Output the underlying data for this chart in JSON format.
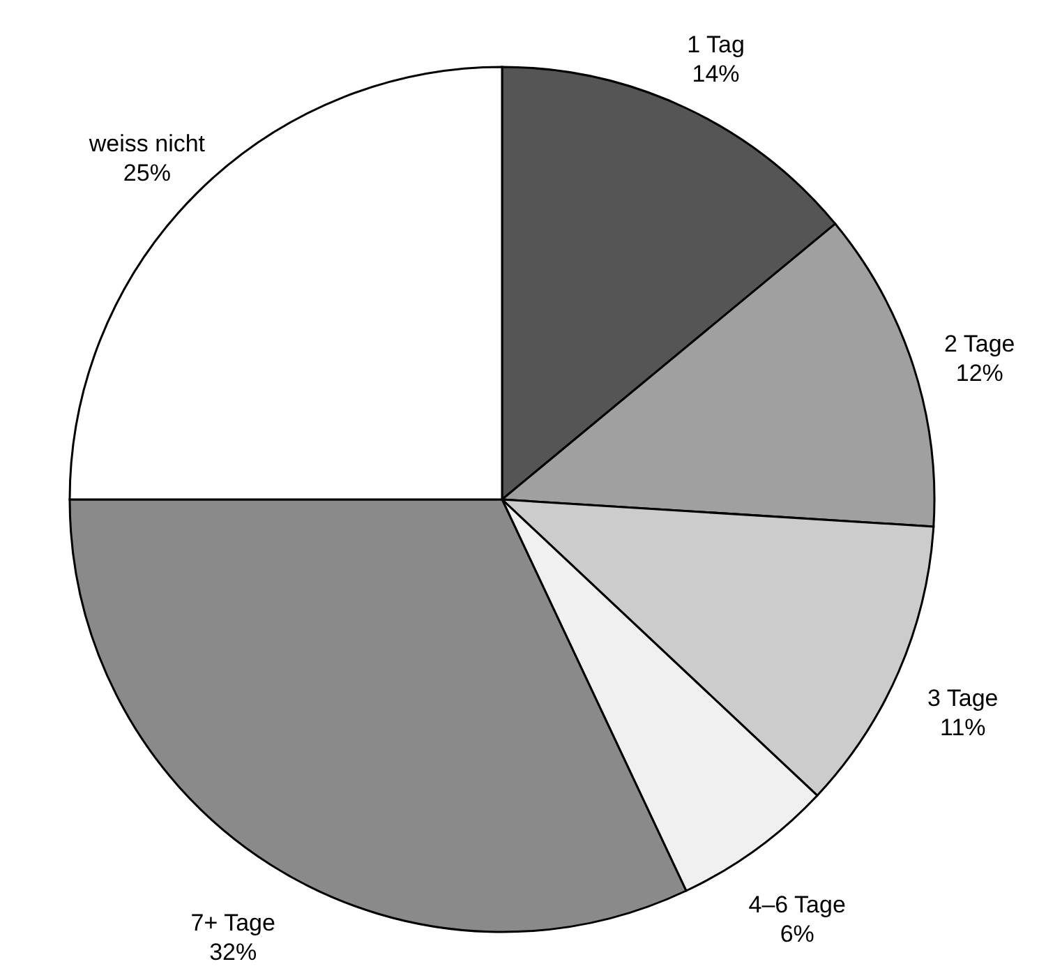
{
  "chart_data": {
    "type": "pie",
    "categories": [
      "1 Tag",
      "2 Tage",
      "3 Tage",
      "4–6 Tage",
      "7+ Tage",
      "weiss nicht"
    ],
    "values": [
      14,
      12,
      11,
      6,
      32,
      25
    ],
    "value_labels": [
      "14%",
      "12%",
      "11%",
      "6%",
      "32%",
      "25%"
    ],
    "colors": [
      "#555555",
      "#a0a0a0",
      "#cccccc",
      "#f0f0f0",
      "#8a8a8a",
      "#ffffff"
    ]
  }
}
